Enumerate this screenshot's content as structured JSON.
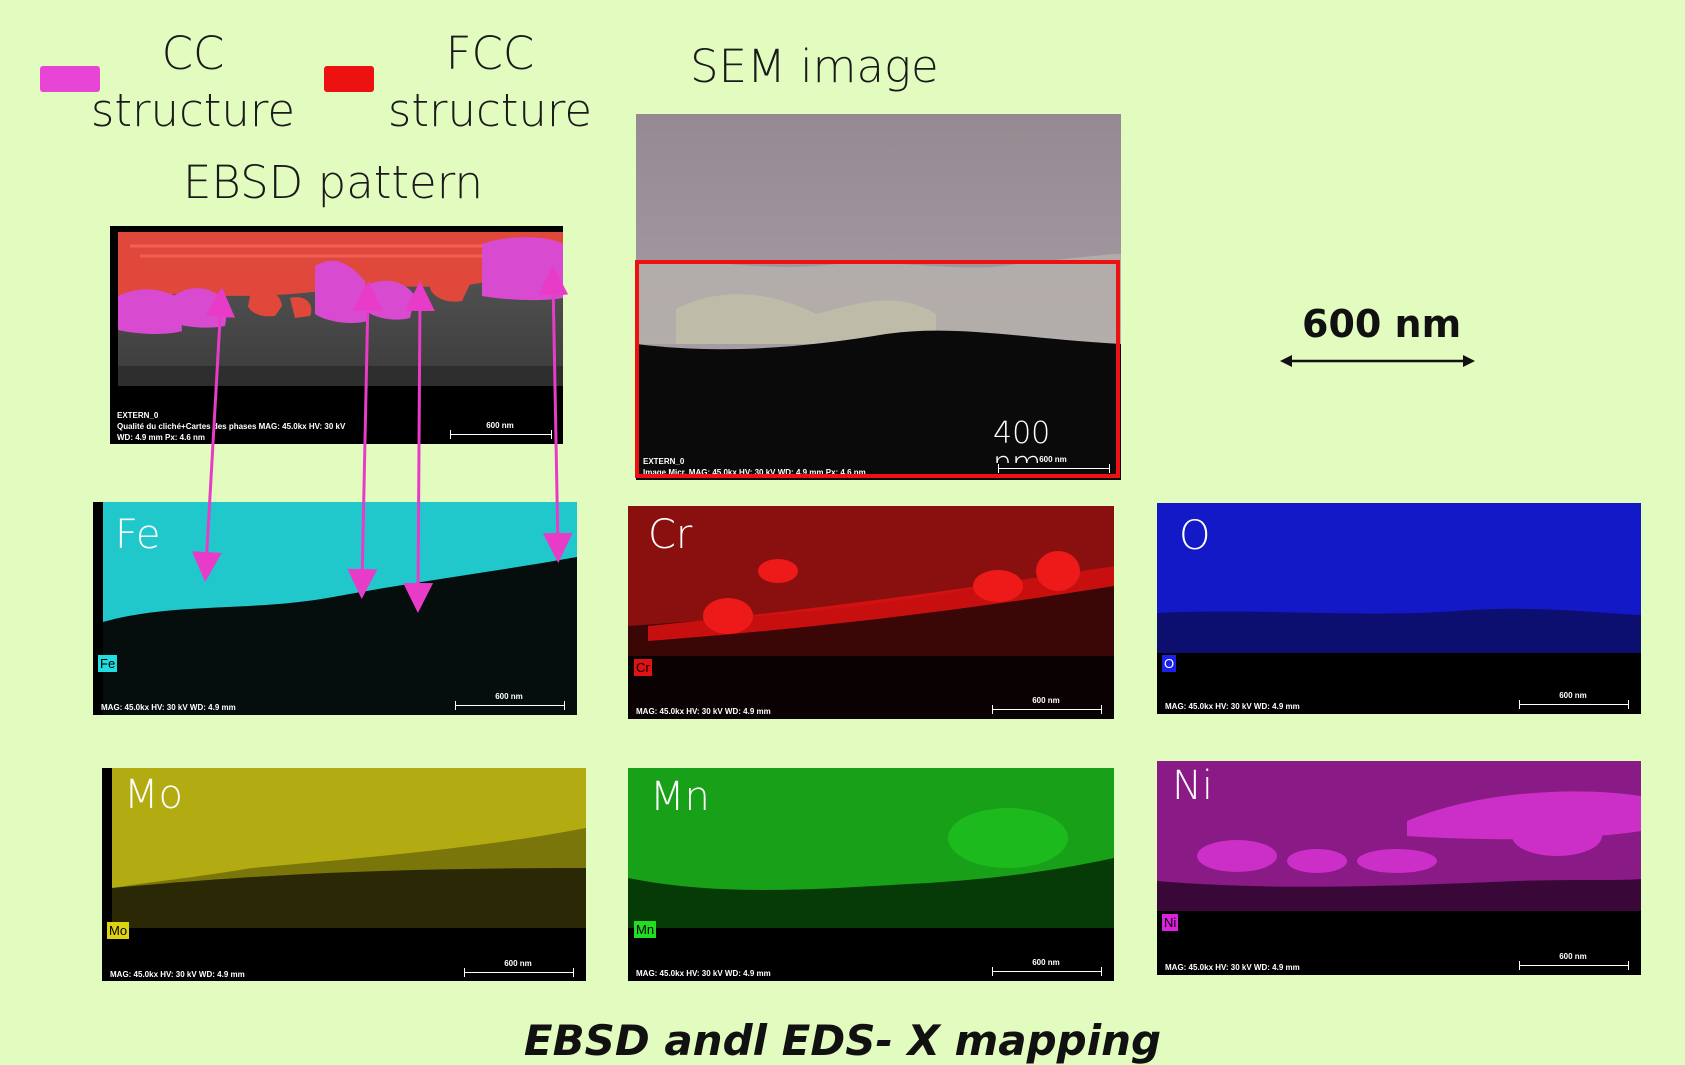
{
  "legend": {
    "cc_line1": "CC",
    "cc_line2": "structure",
    "fcc_line1": "FCC",
    "fcc_line2": "structure",
    "cc_color": "#e844d6",
    "fcc_color": "#ee1111"
  },
  "headings": {
    "sem": "SEM image",
    "ebsd": "EBSD pattern"
  },
  "scale_bar": {
    "label": "600 nm"
  },
  "ebsd_panel": {
    "line1": "EXTERN_0",
    "line2": "Qualité du cliché+Cartes des phases    MAG: 45.0kx    HV: 30 kV",
    "line3": "WD: 4.9 mm    Px: 4.6 nm",
    "scale": "600 nm"
  },
  "sem_panel": {
    "line1": "EXTERN_0",
    "line2": "Image Micr.    MAG: 45.0kx    HV: 30 kV    WD: 4.9 mm    Px: 4.6 nm",
    "scale": "600 nm",
    "overlay_value": "400",
    "overlay_unit": "nm",
    "highlight_color": "#ee1111"
  },
  "maps": [
    {
      "element": "Fe",
      "tag": "Fe",
      "color": "#22dde0",
      "meta": "MAG: 45.0kx    HV: 30 kV    WD: 4.9 mm",
      "scale": "600 nm"
    },
    {
      "element": "Cr",
      "tag": "Cr",
      "color": "#e01212",
      "meta": "MAG: 45.0kx    HV: 30 kV    WD: 4.9 mm",
      "scale": "600 nm"
    },
    {
      "element": "O",
      "tag": "O",
      "color": "#1a22ee",
      "meta": "MAG: 45.0kx    HV: 30 kV    WD: 4.9 mm",
      "scale": "600 nm"
    },
    {
      "element": "Mo",
      "tag": "Mo",
      "color": "#ddd311",
      "meta": "MAG: 45.0kx    HV: 30 kV    WD: 4.9 mm",
      "scale": "600 nm"
    },
    {
      "element": "Mn",
      "tag": "Mn",
      "color": "#22dd22",
      "meta": "MAG: 45.0kx    HV: 30 kV    WD: 4.9 mm",
      "scale": "600 nm"
    },
    {
      "element": "Ni",
      "tag": "Ni",
      "color": "#dd22dd",
      "meta": "MAG: 45.0kx    HV: 30 kV    WD: 4.9 mm",
      "scale": "600 nm"
    }
  ],
  "caption": "EBSD andl EDS- X mapping",
  "arrow_color": "#e83cc8"
}
